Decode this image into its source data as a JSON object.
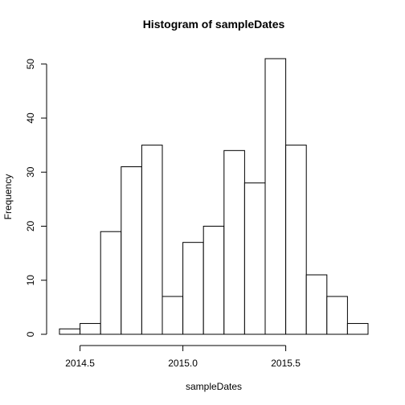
{
  "chart_data": {
    "type": "bar",
    "title": "Histogram of sampleDates",
    "xlabel": "sampleDates",
    "ylabel": "Frequency",
    "bins": [
      {
        "x0": 2014.4,
        "x1": 2014.5,
        "count": 1
      },
      {
        "x0": 2014.5,
        "x1": 2014.6,
        "count": 2
      },
      {
        "x0": 2014.6,
        "x1": 2014.7,
        "count": 19
      },
      {
        "x0": 2014.7,
        "x1": 2014.8,
        "count": 31
      },
      {
        "x0": 2014.8,
        "x1": 2014.9,
        "count": 35
      },
      {
        "x0": 2014.9,
        "x1": 2015.0,
        "count": 7
      },
      {
        "x0": 2015.0,
        "x1": 2015.1,
        "count": 17
      },
      {
        "x0": 2015.1,
        "x1": 2015.2,
        "count": 20
      },
      {
        "x0": 2015.2,
        "x1": 2015.3,
        "count": 34
      },
      {
        "x0": 2015.3,
        "x1": 2015.4,
        "count": 28
      },
      {
        "x0": 2015.4,
        "x1": 2015.5,
        "count": 51
      },
      {
        "x0": 2015.5,
        "x1": 2015.6,
        "count": 35
      },
      {
        "x0": 2015.6,
        "x1": 2015.7,
        "count": 11
      },
      {
        "x0": 2015.7,
        "x1": 2015.8,
        "count": 7
      },
      {
        "x0": 2015.8,
        "x1": 2015.9,
        "count": 2
      }
    ],
    "xticks": [
      {
        "value": 2014.5,
        "label": "2014.5"
      },
      {
        "value": 2015.0,
        "label": "2015.0"
      },
      {
        "value": 2015.5,
        "label": "2015.5"
      }
    ],
    "yticks": [
      {
        "value": 0,
        "label": "0"
      },
      {
        "value": 10,
        "label": "10"
      },
      {
        "value": 20,
        "label": "20"
      },
      {
        "value": 30,
        "label": "30"
      },
      {
        "value": 40,
        "label": "40"
      },
      {
        "value": 50,
        "label": "50"
      }
    ],
    "xlim": [
      2014.4,
      2015.9
    ],
    "ylim": [
      0,
      51
    ],
    "grid": false,
    "colors": {
      "bar_fill": "#ffffff",
      "bar_stroke": "#000000"
    }
  }
}
